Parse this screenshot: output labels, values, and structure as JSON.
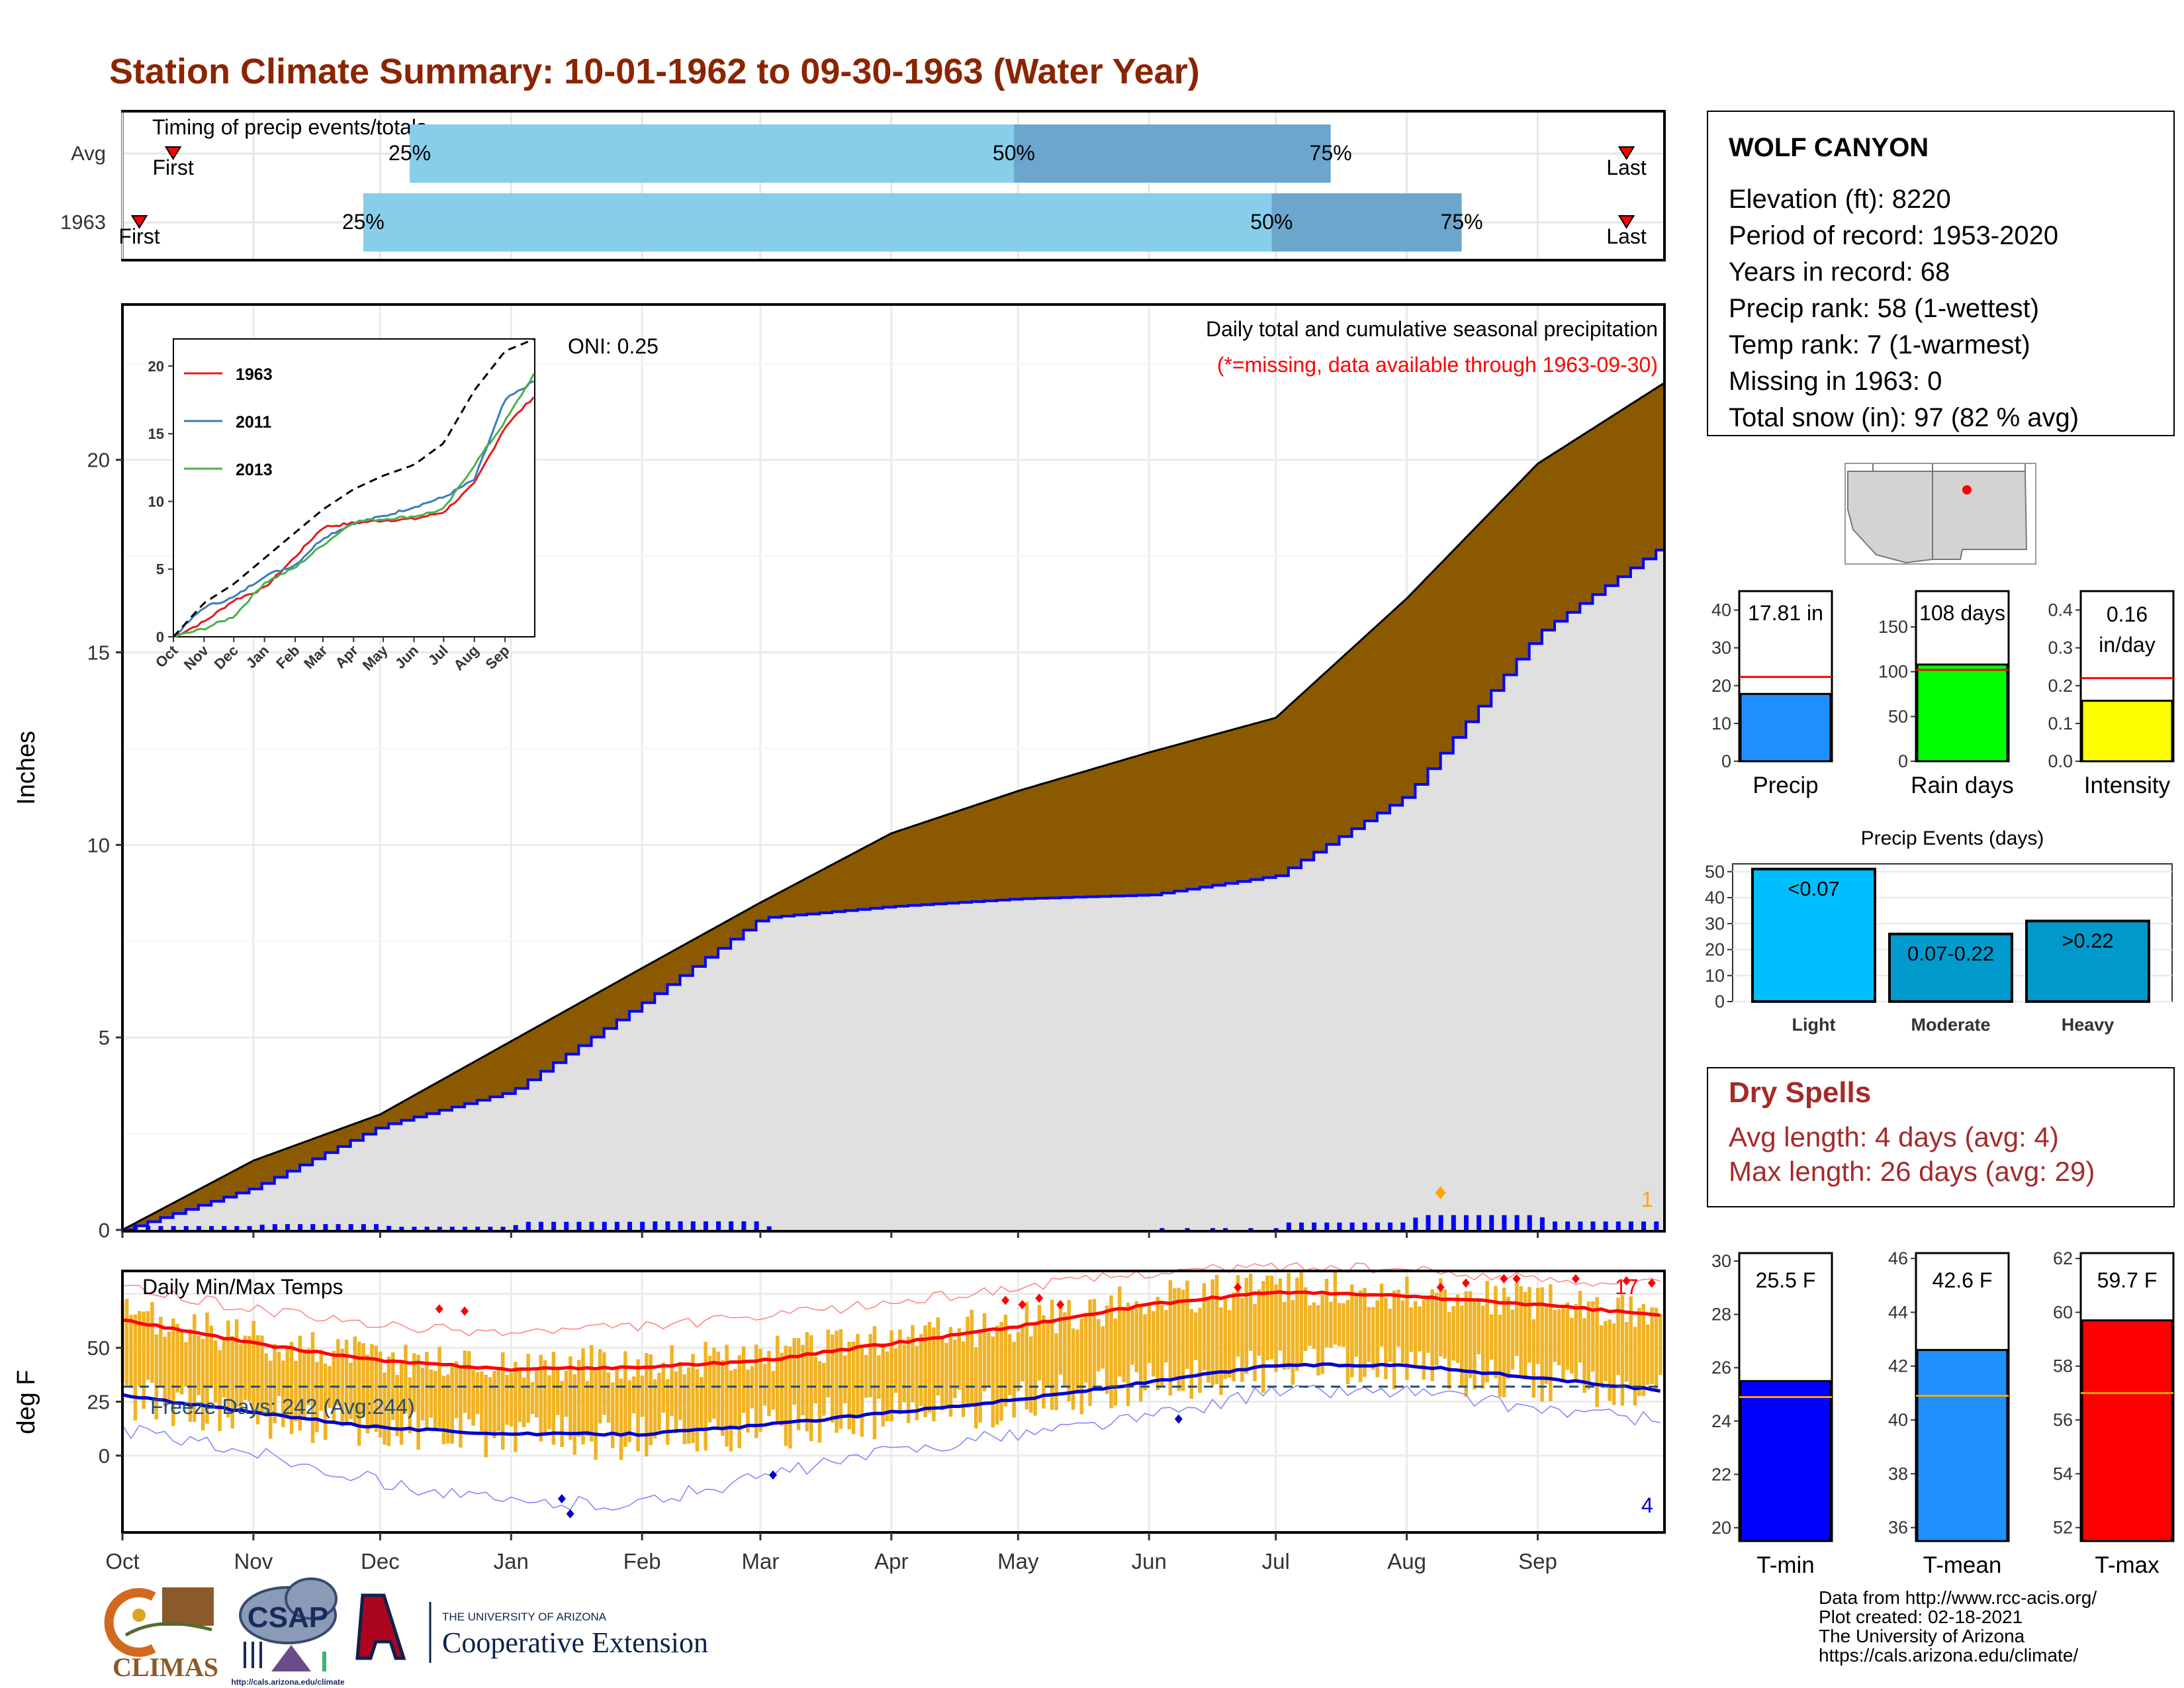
{
  "title": "Station Climate Summary: 10-01-1962 to 09-30-1963 (Water Year)",
  "timing_panel": {
    "label": "Timing of precip events/totals",
    "rows": [
      {
        "name": "Avg",
        "first_label": "First",
        "last_label": "Last",
        "p25": "25%",
        "p50": "50%",
        "p75": "75%",
        "first_day": 12,
        "q25_day": 68,
        "q50_day": 211,
        "q75_day": 286,
        "last_day": 356
      },
      {
        "name": "1963",
        "first_label": "First",
        "last_label": "Last",
        "p25": "25%",
        "p50": "50%",
        "p75": "75%",
        "first_day": 4,
        "q25_day": 57,
        "q50_day": 272,
        "q75_day": 317,
        "last_day": 356
      }
    ]
  },
  "precip_panel": {
    "ylabel": "Inches",
    "title": "Daily total and cumulative seasonal precipitation",
    "missing_note": "(*=missing, data available through 1963-09-30)",
    "oni": "ONI: 0.25",
    "count_label": "1",
    "yticks": [
      "0",
      "5",
      "10",
      "15",
      "20"
    ],
    "colors": {
      "avg_fill": "#8B5A00",
      "year_fill": "#E0E0E0",
      "year_line": "#0000FF",
      "bar": "#0000FF"
    }
  },
  "inset": {
    "legend": [
      "1963",
      "2011",
      "2013"
    ],
    "legend_colors": [
      "#E41A1C",
      "#377EB8",
      "#4DAF4A"
    ],
    "yticks": [
      "0",
      "5",
      "10",
      "15",
      "20"
    ],
    "xticks": [
      "Oct",
      "Nov",
      "Dec",
      "Jan",
      "Feb",
      "Mar",
      "Apr",
      "May",
      "Jun",
      "Jul",
      "Aug",
      "Sep"
    ]
  },
  "temp_panel": {
    "ylabel": "deg F",
    "label": "Daily Min/Max Temps",
    "freeze_days": "Freeze Days: 242 (Avg:244)",
    "count_high": "17",
    "count_low": "4",
    "yticks": [
      "0",
      "25",
      "50"
    ],
    "colors": {
      "bars": "#F0B323",
      "max_line": "#FF0000",
      "min_line": "#0000CC",
      "freeze_line": "#1F4E79"
    }
  },
  "months": [
    "Oct",
    "Nov",
    "Dec",
    "Jan",
    "Feb",
    "Mar",
    "Apr",
    "May",
    "Jun",
    "Jul",
    "Aug",
    "Sep"
  ],
  "station_info": {
    "name": "WOLF CANYON",
    "elevation": "Elevation (ft): 8220",
    "period": "Period of record: 1953-2020",
    "years": "Years in record: 68",
    "precip_rank": "Precip rank: 58 (1-wettest)",
    "temp_rank": "Temp rank: 7 (1-warmest)",
    "missing": "Missing in 1963: 0",
    "snow": "Total snow (in): 97 (82 % avg)"
  },
  "mini_bars": {
    "precip": {
      "label": "Precip",
      "value_label": "17.81 in",
      "value": 17.81,
      "avg": 22.3,
      "ymax": 45,
      "yticks": [
        "0",
        "10",
        "20",
        "30",
        "40"
      ],
      "color": "#1E90FF"
    },
    "rain_days": {
      "label": "Rain days",
      "value_label": "108 days",
      "value": 108,
      "avg": 102,
      "ymax": 190,
      "yticks": [
        "0",
        "50",
        "100",
        "150"
      ],
      "color": "#00FF00"
    },
    "intensity": {
      "label": "Intensity",
      "value_label": "0.16",
      "value_label2": "in/day",
      "value": 0.16,
      "avg": 0.22,
      "ymax": 0.45,
      "yticks": [
        "0.0",
        "0.1",
        "0.2",
        "0.3",
        "0.4"
      ],
      "color": "#FFFF00"
    }
  },
  "precip_events": {
    "title": "Precip Events (days)",
    "categories": [
      "Light",
      "Moderate",
      "Heavy"
    ],
    "bar_labels": [
      "<0.07",
      "0.07-0.22",
      ">0.22"
    ],
    "values": [
      51,
      26,
      31
    ],
    "yticks": [
      "0",
      "10",
      "20",
      "30",
      "40",
      "50"
    ],
    "colors": [
      "#00BFFF",
      "#009ACD",
      "#0099CC"
    ]
  },
  "dry_spells": {
    "title": "Dry Spells",
    "avg": "Avg length: 4 days (avg: 4)",
    "max": "Max length: 26 days (avg: 29)"
  },
  "temp_bars": {
    "tmin": {
      "label": "T-min",
      "value_label": "25.5 F",
      "value": 25.5,
      "avg": 24.9,
      "ymin": 19.5,
      "ymax": 30.3,
      "yticks": [
        "20",
        "22",
        "24",
        "26",
        "28",
        "30"
      ],
      "color": "#0000FF"
    },
    "tmean": {
      "label": "T-mean",
      "value_label": "42.6 F",
      "value": 42.6,
      "avg": 40.9,
      "ymin": 35.5,
      "ymax": 46.2,
      "yticks": [
        "36",
        "38",
        "40",
        "42",
        "44",
        "46"
      ],
      "color": "#1E90FF"
    },
    "tmax": {
      "label": "T-max",
      "value_label": "59.7 F",
      "value": 59.7,
      "avg": 57.0,
      "ymin": 51.5,
      "ymax": 62.2,
      "yticks": [
        "52",
        "54",
        "56",
        "58",
        "60",
        "62"
      ],
      "color": "#FF0000"
    }
  },
  "footer": {
    "line1": "Data from http://www.rcc-acis.org/",
    "line2": "Plot created: 02-18-2021",
    "line3": "The University of Arizona",
    "line4": "https://cals.arizona.edu/climate/"
  },
  "logos": {
    "climas": "CLIMAS",
    "csap": "CSAP",
    "csap_url": "http://cals.arizona.edu/climate",
    "ua_line1": "THE UNIVERSITY OF ARIZONA",
    "ua_line2": "Cooperative Extension"
  },
  "chart_data": [
    {
      "type": "area",
      "title": "Daily total and cumulative seasonal precipitation",
      "ylabel": "Inches",
      "ylim": [
        0,
        24
      ],
      "x": [
        "Oct",
        "Nov",
        "Dec",
        "Jan",
        "Feb",
        "Mar",
        "Apr",
        "May",
        "Jun",
        "Jul",
        "Aug",
        "Sep",
        "Sep 30"
      ],
      "series": [
        {
          "name": "Avg",
          "values": [
            0,
            1.8,
            3.0,
            4.9,
            6.8,
            8.5,
            10.3,
            11.4,
            12.4,
            13.3,
            16.4,
            19.9,
            22.0
          ]
        },
        {
          "name": "1963",
          "values": [
            0,
            1.1,
            2.7,
            3.6,
            5.9,
            8.1,
            8.4,
            8.6,
            8.7,
            9.2,
            11.3,
            15.5,
            17.81
          ]
        }
      ]
    },
    {
      "type": "line",
      "ylim": [
        0,
        22
      ],
      "x": [
        "Oct",
        "Nov",
        "Dec",
        "Jan",
        "Feb",
        "Mar",
        "Apr",
        "May",
        "Jun",
        "Jul",
        "Aug",
        "Sep",
        "Sep 30"
      ],
      "series": [
        {
          "name": "1963",
          "values": [
            0,
            1.1,
            2.7,
            3.6,
            5.9,
            8.1,
            8.4,
            8.6,
            8.7,
            9.2,
            11.3,
            15.5,
            17.81
          ]
        },
        {
          "name": "2011",
          "values": [
            0,
            2.2,
            2.9,
            4.5,
            5.3,
            7.3,
            8.4,
            8.9,
            9.6,
            10.3,
            11.6,
            17.5,
            18.9
          ]
        },
        {
          "name": "2013",
          "values": [
            0,
            0.6,
            1.5,
            4.0,
            5.1,
            6.8,
            8.5,
            8.7,
            8.9,
            9.4,
            12.7,
            15.9,
            19.5
          ]
        },
        {
          "values": [
            0,
            2.5,
            3.9,
            5.8,
            7.7,
            9.4,
            10.9,
            11.9,
            12.7,
            14.3,
            18.2,
            21.1,
            22.0
          ]
        }
      ]
    },
    {
      "type": "line",
      "title": "Daily Min/Max Temps",
      "ylabel": "deg F",
      "ylim": [
        -35,
        85
      ],
      "x": [
        "Oct",
        "Nov",
        "Dec",
        "Jan",
        "Feb",
        "Mar",
        "Apr",
        "May",
        "Jun",
        "Jul",
        "Aug",
        "Sep",
        "Sep 30"
      ],
      "series": [
        {
          "name": "Avg max",
          "values": [
            63,
            52,
            44,
            40,
            41,
            44,
            52,
            60,
            70,
            76,
            74,
            70,
            65
          ]
        },
        {
          "name": "Avg min",
          "values": [
            28,
            20,
            13,
            10,
            10,
            14,
            20,
            26,
            34,
            42,
            42,
            36,
            30
          ]
        },
        {
          "name": "Record max",
          "values": [
            78,
            68,
            60,
            57,
            60,
            64,
            71,
            78,
            85,
            88,
            86,
            82,
            80
          ]
        },
        {
          "name": "Record min",
          "values": [
            12,
            2,
            -12,
            -22,
            -22,
            -10,
            2,
            10,
            18,
            30,
            30,
            22,
            16
          ]
        }
      ]
    },
    {
      "type": "bar",
      "categories": [
        "Precip",
        "Rain days",
        "Intensity"
      ],
      "values": [
        17.81,
        108,
        0.16
      ]
    },
    {
      "type": "bar",
      "title": "Precip Events (days)",
      "categories": [
        "Light",
        "Moderate",
        "Heavy"
      ],
      "values": [
        51,
        26,
        31
      ]
    },
    {
      "type": "bar",
      "categories": [
        "T-min",
        "T-mean",
        "T-max"
      ],
      "values": [
        25.5,
        42.6,
        59.7
      ]
    }
  ]
}
